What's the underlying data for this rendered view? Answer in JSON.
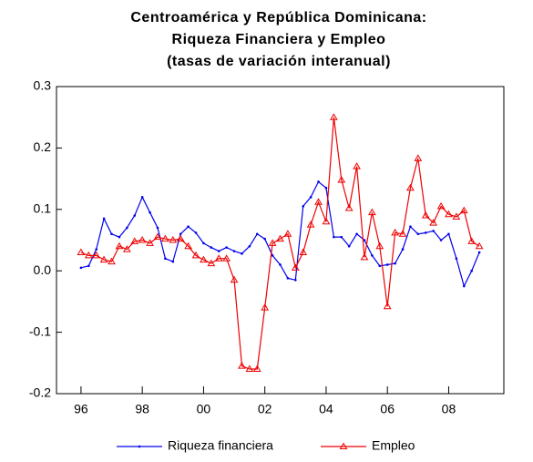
{
  "chart_data": {
    "type": "line",
    "title": [
      "Centroamérica y República Dominicana:",
      "Riqueza Financiera y Empleo",
      "(tasas de variación interanual)"
    ],
    "x": [
      1996,
      1996.25,
      1996.5,
      1996.75,
      1997,
      1997.25,
      1997.5,
      1997.75,
      1998,
      1998.25,
      1998.5,
      1998.75,
      1999,
      1999.25,
      1999.5,
      1999.75,
      2000,
      2000.25,
      2000.5,
      2000.75,
      2001,
      2001.25,
      2001.5,
      2001.75,
      2002,
      2002.25,
      2002.5,
      2002.75,
      2003,
      2003.25,
      2003.5,
      2003.75,
      2004,
      2004.25,
      2004.5,
      2004.75,
      2005,
      2005.25,
      2005.5,
      2005.75,
      2006,
      2006.25,
      2006.5,
      2006.75,
      2007,
      2007.25,
      2007.5,
      2007.75,
      2008,
      2008.25,
      2008.5,
      2008.75,
      2009
    ],
    "series": [
      {
        "name": "Riqueza financiera",
        "color": "#0000ee",
        "marker": "dot",
        "values": [
          0.005,
          0.008,
          0.035,
          0.085,
          0.06,
          0.055,
          0.07,
          0.09,
          0.12,
          0.095,
          0.07,
          0.02,
          0.015,
          0.06,
          0.072,
          0.062,
          0.045,
          0.038,
          0.032,
          0.038,
          0.032,
          0.028,
          0.04,
          0.06,
          0.052,
          0.025,
          0.01,
          -0.012,
          -0.015,
          0.105,
          0.12,
          0.145,
          0.135,
          0.055,
          0.055,
          0.04,
          0.06,
          0.05,
          0.025,
          0.008,
          0.01,
          0.012,
          0.035,
          0.072,
          0.06,
          0.062,
          0.065,
          0.05,
          0.06,
          0.02,
          -0.025,
          0,
          0.03
        ]
      },
      {
        "name": "Empleo",
        "color": "#ee0000",
        "marker": "triangle",
        "values": [
          0.03,
          0.025,
          0.025,
          0.018,
          0.015,
          0.04,
          0.035,
          0.048,
          0.05,
          0.045,
          0.055,
          0.052,
          0.05,
          0.052,
          0.04,
          0.025,
          0.018,
          0.012,
          0.02,
          0.02,
          -0.015,
          -0.155,
          -0.16,
          -0.16,
          -0.06,
          0.045,
          0.052,
          0.06,
          0.005,
          0.03,
          0.075,
          0.112,
          0.08,
          0.25,
          0.148,
          0.102,
          0.17,
          0.022,
          0.095,
          0.04,
          -0.058,
          0.062,
          0.06,
          0.135,
          0.183,
          0.09,
          0.078,
          0.105,
          0.092,
          0.088,
          0.098,
          0.048,
          0.04
        ]
      }
    ],
    "xlim": [
      1995.2,
      2009.8
    ],
    "xticks": [
      {
        "value": 1996,
        "label": "96"
      },
      {
        "value": 1998,
        "label": "98"
      },
      {
        "value": 2000,
        "label": "00"
      },
      {
        "value": 2002,
        "label": "02"
      },
      {
        "value": 2004,
        "label": "04"
      },
      {
        "value": 2006,
        "label": "06"
      },
      {
        "value": 2008,
        "label": "08"
      }
    ],
    "ylim": [
      -0.2,
      0.3
    ],
    "yticks": [
      {
        "value": -0.2,
        "label": "-0.2"
      },
      {
        "value": -0.1,
        "label": "-0.1"
      },
      {
        "value": 0,
        "label": "0.0"
      },
      {
        "value": 0.1,
        "label": "0.1"
      },
      {
        "value": 0.2,
        "label": "0.2"
      },
      {
        "value": 0.3,
        "label": "0.3"
      }
    ],
    "grid": false,
    "legend": "bottom"
  }
}
